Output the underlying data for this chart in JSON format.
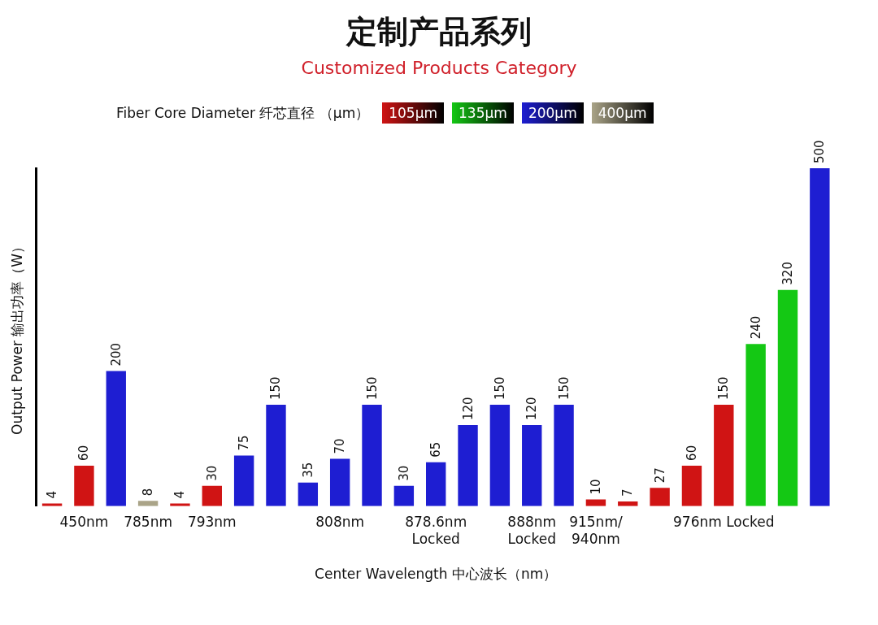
{
  "chart_data": {
    "type": "bar",
    "title": "定制产品系列",
    "subtitle": "Customized Products Category",
    "xlabel": "Center Wavelength 中心波长（nm）",
    "ylabel": "Output Power 输出功率（W）",
    "legend_title": "Fiber Core Diameter 纤芯直径 （µm）",
    "legend": "top",
    "data_labels": true,
    "tick_labels": "x",
    "ylim": [
      0,
      500
    ],
    "categories": [
      null,
      "450nm",
      null,
      "785nm",
      null,
      "793nm",
      null,
      null,
      null,
      "808nm",
      null,
      null,
      "878.6nm\nLocked",
      null,
      null,
      "888nm\nLocked",
      null,
      "915nm/\n940nm",
      null,
      null,
      null,
      "976nm Locked",
      null,
      null,
      null
    ],
    "series": [
      {
        "name": "105µm",
        "color": "#d01414",
        "values": [
          4,
          60,
          null,
          null,
          4,
          30,
          null,
          null,
          null,
          null,
          null,
          null,
          null,
          null,
          null,
          null,
          null,
          10,
          7,
          27,
          60,
          150,
          null,
          null,
          null
        ]
      },
      {
        "name": "135µm",
        "color": "#14c814",
        "values": [
          null,
          null,
          null,
          null,
          null,
          null,
          null,
          null,
          null,
          null,
          null,
          null,
          null,
          null,
          null,
          null,
          null,
          null,
          null,
          null,
          null,
          null,
          240,
          320,
          null
        ]
      },
      {
        "name": "200µm",
        "color": "#1e1ed2",
        "values": [
          null,
          null,
          200,
          null,
          null,
          null,
          75,
          150,
          35,
          70,
          150,
          30,
          65,
          120,
          150,
          120,
          150,
          null,
          null,
          null,
          null,
          null,
          null,
          null,
          500
        ]
      },
      {
        "name": "400µm",
        "color": "#aaa488",
        "values": [
          null,
          null,
          null,
          8,
          null,
          null,
          null,
          null,
          null,
          null,
          null,
          null,
          null,
          null,
          null,
          null,
          null,
          null,
          null,
          null,
          null,
          null,
          null,
          null,
          null
        ]
      }
    ]
  }
}
